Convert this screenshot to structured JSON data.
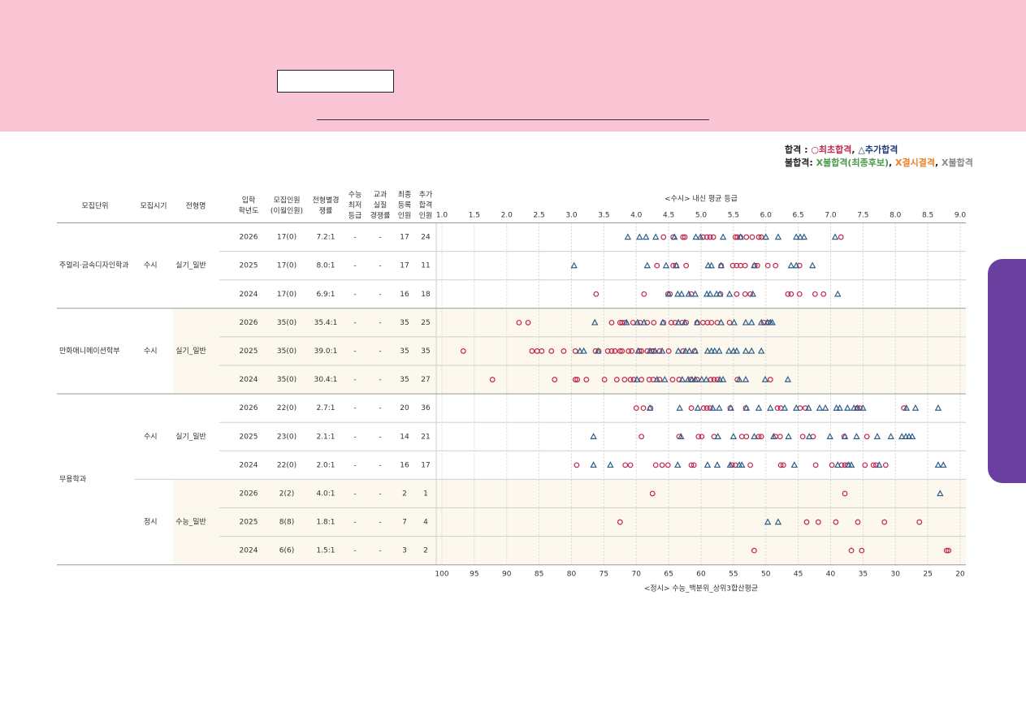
{
  "legend": [
    [
      {
        "text": "합격",
        "color": "#222222"
      },
      {
        "text": "  : ",
        "color": "#222222"
      },
      {
        "text": "○최초합격",
        "color": "#c0284f"
      },
      {
        "text": ", ",
        "color": "#222222"
      },
      {
        "text": "△추가합격",
        "color": "#1f3d7a"
      }
    ],
    [
      {
        "text": "불합격:",
        "color": "#222222"
      },
      {
        "text": " X불합격(최종후보)",
        "color": "#4a9a4a"
      },
      {
        "text": ", ",
        "color": "#222222"
      },
      {
        "text": "X결시결격",
        "color": "#e8812a"
      },
      {
        "text": ", ",
        "color": "#222222"
      },
      {
        "text": "X불합격",
        "color": "#888888"
      }
    ]
  ],
  "markers": {
    "first": {
      "shape": "circle",
      "color": "#c0284f"
    },
    "extra_pass": {
      "shape": "triangle",
      "color": "#2d5f8a"
    }
  },
  "axes": {
    "x": {
      "label": "<수시> 내신 평균 등급",
      "lim": [
        1,
        9
      ],
      "grid": true,
      "ticks": [
        {
          "value": 1,
          "label": "1.0"
        },
        1.5,
        {
          "value": 2,
          "label": "2.0"
        },
        2.5,
        {
          "value": 3,
          "label": "3.0"
        },
        3.5,
        {
          "value": 4,
          "label": "4.0"
        },
        4.5,
        {
          "value": 5,
          "label": "5.0"
        },
        5.5,
        {
          "value": 6,
          "label": "6.0"
        },
        6.5,
        {
          "value": 7,
          "label": "7.0"
        },
        7.5,
        {
          "value": 8,
          "label": "8.0"
        },
        8.5,
        {
          "value": 9,
          "label": "9.0"
        }
      ]
    },
    "x2": {
      "label": "<정시> 수능_백분위_상위3합산평균",
      "lim": [
        100,
        20
      ],
      "grid": false,
      "ticks": [
        100,
        95,
        90,
        85,
        80,
        75,
        70,
        65,
        60,
        55,
        50,
        45,
        40,
        35,
        30,
        25,
        20
      ]
    }
  },
  "table": {
    "headers": [
      [
        "모집단위"
      ],
      [
        "모집시기"
      ],
      [
        "전형명"
      ],
      [
        "입학",
        "학년도"
      ],
      [
        "모집인원",
        "(이월인원)"
      ],
      [
        "전형별경",
        "쟁률"
      ],
      [
        "수능",
        "최저",
        "등급"
      ],
      [
        "교과",
        "실질",
        "경쟁률"
      ],
      [
        "최종",
        "등록",
        "인원"
      ],
      [
        "추가",
        "합격",
        "인원"
      ]
    ],
    "groups": [
      {
        "unit": "주얼리·금속디자인학과",
        "sections": [
          {
            "period": "수시",
            "track": "실기_일반",
            "shaded": false,
            "rows": [
              {
                "year": 2026,
                "quota": "17(0)",
                "ratio": "7.2:1",
                "min": "-",
                "real": "-",
                "enrolled": 17,
                "extra": 24,
                "axis": "x",
                "first": [
                  4.42,
                  4.57,
                  4.72,
                  4.75,
                  5.03,
                  5.09,
                  5.14,
                  5.19,
                  5.53,
                  5.56,
                  5.61,
                  5.7,
                  5.79,
                  5.89,
                  5.93,
                  7.16
                ],
                "extra_pass": [
                  3.87,
                  4.05,
                  4.15,
                  4.3,
                  4.59,
                  4.92,
                  4.99,
                  5.34,
                  5.61,
                  6.0,
                  6.19,
                  6.47,
                  6.53,
                  6.59,
                  7.07
                ]
              },
              {
                "year": 2025,
                "quota": "17(0)",
                "ratio": "8.0:1",
                "min": "-",
                "real": "-",
                "enrolled": 17,
                "extra": 11,
                "axis": "x",
                "first": [
                  4.32,
                  4.57,
                  4.61,
                  4.77,
                  5.31,
                  5.49,
                  5.55,
                  5.61,
                  5.68,
                  5.83,
                  5.87,
                  6.03,
                  6.15,
                  6.52
                ],
                "extra_pass": [
                  3.04,
                  4.17,
                  4.46,
                  4.62,
                  5.11,
                  5.16,
                  5.31,
                  5.82,
                  6.39,
                  6.47,
                  6.72
                ]
              },
              {
                "year": 2024,
                "quota": "17(0)",
                "ratio": "6.9:1",
                "min": "-",
                "real": "-",
                "enrolled": 16,
                "extra": 18,
                "axis": "x",
                "first": [
                  3.38,
                  4.12,
                  4.49,
                  4.52,
                  4.85,
                  5.3,
                  5.55,
                  5.68,
                  5.76,
                  6.34,
                  6.39,
                  6.52,
                  6.76,
                  6.89
                ],
                "extra_pass": [
                  4.5,
                  4.64,
                  4.7,
                  4.81,
                  4.91,
                  5.09,
                  5.14,
                  5.24,
                  5.29,
                  5.44,
                  5.8,
                  7.11
                ]
              }
            ]
          }
        ]
      },
      {
        "unit": "만화애니메이션학부",
        "sections": [
          {
            "period": "수시",
            "track": "실기_일반",
            "shaded": true,
            "rows": [
              {
                "year": 2026,
                "quota": "35(0)",
                "ratio": "35.4:1",
                "min": "-",
                "real": "-",
                "enrolled": 35,
                "extra": 25,
                "axis": "x",
                "first": [
                  2.19,
                  2.33,
                  3.62,
                  3.75,
                  3.78,
                  3.82,
                  3.95,
                  4.06,
                  4.17,
                  4.27,
                  4.42,
                  4.54,
                  4.6,
                  4.71,
                  4.77,
                  4.94,
                  5.03,
                  5.1,
                  5.16,
                  5.25,
                  5.44,
                  5.97,
                  6.04
                ],
                "extra_pass": [
                  3.36,
                  3.85,
                  4.02,
                  4.12,
                  4.41,
                  4.65,
                  4.75,
                  4.94,
                  5.31,
                  5.51,
                  5.69,
                  5.78,
                  5.93,
                  6.02,
                  6.07,
                  6.1
                ]
              },
              {
                "year": 2025,
                "quota": "35(0)",
                "ratio": "39.0:1",
                "min": "-",
                "real": "-",
                "enrolled": 35,
                "extra": 35,
                "axis": "x",
                "first": [
                  1.33,
                  2.39,
                  2.47,
                  2.54,
                  2.69,
                  2.88,
                  3.06,
                  3.37,
                  3.42,
                  3.56,
                  3.62,
                  3.67,
                  3.75,
                  3.78,
                  3.88,
                  3.93,
                  4.05,
                  4.08,
                  4.17,
                  4.24,
                  4.27,
                  4.36,
                  4.5,
                  4.72,
                  4.9
                ],
                "extra_pass": [
                  3.13,
                  3.19,
                  3.41,
                  4.03,
                  4.21,
                  4.29,
                  4.4,
                  4.65,
                  4.76,
                  4.82,
                  4.91,
                  5.1,
                  5.16,
                  5.21,
                  5.28,
                  5.43,
                  5.5,
                  5.55,
                  5.69,
                  5.78,
                  5.93
                ]
              },
              {
                "year": 2024,
                "quota": "35(0)",
                "ratio": "30.4:1",
                "min": "-",
                "real": "-",
                "enrolled": 35,
                "extra": 27,
                "axis": "x",
                "first": [
                  1.78,
                  2.74,
                  3.06,
                  3.09,
                  3.23,
                  3.51,
                  3.7,
                  3.82,
                  3.91,
                  3.96,
                  4.08,
                  4.2,
                  4.26,
                  4.36,
                  4.56,
                  4.66,
                  4.84,
                  4.94,
                  5.15,
                  5.2,
                  5.25,
                  5.56,
                  6.07
                ],
                "extra_pass": [
                  4.01,
                  4.32,
                  4.44,
                  4.71,
                  4.8,
                  4.86,
                  4.91,
                  5.01,
                  5.08,
                  5.29,
                  5.34,
                  5.59,
                  5.69,
                  5.99,
                  6.34
                ]
              }
            ]
          }
        ]
      },
      {
        "unit": "무용학과",
        "sections": [
          {
            "period": "수시",
            "track": "실기_일반",
            "shaded": false,
            "rows": [
              {
                "year": 2026,
                "quota": "22(0)",
                "ratio": "2.7:1",
                "min": "-",
                "real": "-",
                "enrolled": 20,
                "extra": 36,
                "axis": "x",
                "first": [
                  4.0,
                  4.11,
                  4.22,
                  4.85,
                  5.04,
                  5.09,
                  5.14,
                  5.45,
                  5.69,
                  6.18,
                  6.23,
                  6.53,
                  6.61,
                  7.41,
                  7.45,
                  8.13
                ],
                "extra_pass": [
                  4.21,
                  4.67,
                  4.95,
                  5.18,
                  5.28,
                  5.46,
                  5.7,
                  5.89,
                  6.07,
                  6.29,
                  6.47,
                  6.66,
                  6.83,
                  6.92,
                  7.09,
                  7.14,
                  7.26,
                  7.36,
                  7.41,
                  7.5,
                  8.17,
                  8.31,
                  8.66
                ]
              },
              {
                "year": 2025,
                "quota": "23(0)",
                "ratio": "2.1:1",
                "min": "-",
                "real": "-",
                "enrolled": 14,
                "extra": 21,
                "axis": "x",
                "first": [
                  4.08,
                  4.66,
                  4.96,
                  5.01,
                  5.2,
                  5.63,
                  5.7,
                  5.89,
                  5.93,
                  6.15,
                  6.22,
                  6.57,
                  6.73,
                  7.21,
                  7.56
                ],
                "extra_pass": [
                  3.34,
                  4.69,
                  5.26,
                  5.5,
                  5.82,
                  6.12,
                  6.35,
                  6.67,
                  6.99,
                  7.22,
                  7.4,
                  7.72,
                  7.93,
                  8.1,
                  8.16,
                  8.21,
                  8.26
                ]
              },
              {
                "year": 2024,
                "quota": "22(0)",
                "ratio": "2.0:1",
                "min": "-",
                "real": "-",
                "enrolled": 16,
                "extra": 17,
                "axis": "x",
                "first": [
                  3.08,
                  3.83,
                  3.91,
                  4.3,
                  4.4,
                  4.49,
                  4.85,
                  4.89,
                  5.48,
                  5.53,
                  5.76,
                  6.23,
                  6.27,
                  6.77,
                  7.02,
                  7.17,
                  7.22,
                  7.26,
                  7.53,
                  7.66,
                  7.7,
                  7.85
                ],
                "extra_pass": [
                  3.34,
                  3.6,
                  4.64,
                  5.1,
                  5.25,
                  5.45,
                  5.59,
                  5.63,
                  6.44,
                  7.11,
                  7.28,
                  7.32,
                  7.75,
                  8.66,
                  8.74
                ]
              }
            ]
          },
          {
            "period": "정시",
            "track": "수능_일반",
            "shaded": true,
            "rows": [
              {
                "year": 2026,
                "quota": "2(2)",
                "ratio": "4.0:1",
                "min": "-",
                "real": "-",
                "enrolled": 2,
                "extra": 1,
                "axis": "x2",
                "first": [
                  67.5,
                  37.8
                ],
                "extra_pass": [
                  23.1
                ]
              },
              {
                "year": 2025,
                "quota": "8(8)",
                "ratio": "1.8:1",
                "min": "-",
                "real": "-",
                "enrolled": 7,
                "extra": 4,
                "axis": "x2",
                "first": [
                  72.5,
                  43.7,
                  41.9,
                  39.2,
                  35.8,
                  31.7,
                  26.3
                ],
                "extra_pass": [
                  49.7,
                  48.1
                ]
              },
              {
                "year": 2024,
                "quota": "6(6)",
                "ratio": "1.5:1",
                "min": "-",
                "real": "-",
                "enrolled": 3,
                "extra": 2,
                "axis": "x2",
                "first": [
                  51.8,
                  36.8,
                  35.2,
                  22.1,
                  21.8
                ],
                "extra_pass": []
              }
            ]
          }
        ]
      }
    ]
  }
}
